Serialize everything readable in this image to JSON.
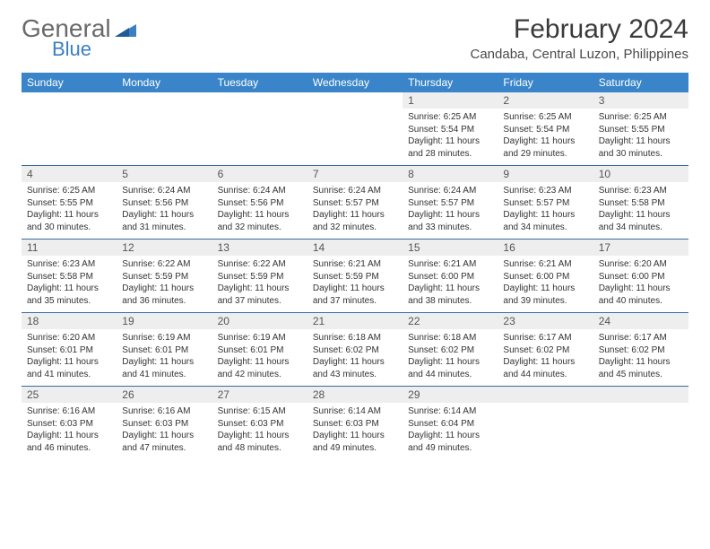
{
  "brand": {
    "general": "General",
    "blue": "Blue"
  },
  "title": "February 2024",
  "location": "Candaba, Central Luzon, Philippines",
  "weekdays": [
    "Sunday",
    "Monday",
    "Tuesday",
    "Wednesday",
    "Thursday",
    "Friday",
    "Saturday"
  ],
  "colors": {
    "header_bg": "#3a85c9",
    "header_text": "#ffffff",
    "daynum_bg": "#eeeeee",
    "week_border": "#3a6aa0",
    "brand_gray": "#6a6a6a",
    "brand_blue": "#3a7fc4"
  },
  "calendar": {
    "type": "table",
    "first_weekday_index": 4,
    "days": [
      {
        "n": 1,
        "sunrise": "6:25 AM",
        "sunset": "5:54 PM",
        "daylight": "11 hours and 28 minutes."
      },
      {
        "n": 2,
        "sunrise": "6:25 AM",
        "sunset": "5:54 PM",
        "daylight": "11 hours and 29 minutes."
      },
      {
        "n": 3,
        "sunrise": "6:25 AM",
        "sunset": "5:55 PM",
        "daylight": "11 hours and 30 minutes."
      },
      {
        "n": 4,
        "sunrise": "6:25 AM",
        "sunset": "5:55 PM",
        "daylight": "11 hours and 30 minutes."
      },
      {
        "n": 5,
        "sunrise": "6:24 AM",
        "sunset": "5:56 PM",
        "daylight": "11 hours and 31 minutes."
      },
      {
        "n": 6,
        "sunrise": "6:24 AM",
        "sunset": "5:56 PM",
        "daylight": "11 hours and 32 minutes."
      },
      {
        "n": 7,
        "sunrise": "6:24 AM",
        "sunset": "5:57 PM",
        "daylight": "11 hours and 32 minutes."
      },
      {
        "n": 8,
        "sunrise": "6:24 AM",
        "sunset": "5:57 PM",
        "daylight": "11 hours and 33 minutes."
      },
      {
        "n": 9,
        "sunrise": "6:23 AM",
        "sunset": "5:57 PM",
        "daylight": "11 hours and 34 minutes."
      },
      {
        "n": 10,
        "sunrise": "6:23 AM",
        "sunset": "5:58 PM",
        "daylight": "11 hours and 34 minutes."
      },
      {
        "n": 11,
        "sunrise": "6:23 AM",
        "sunset": "5:58 PM",
        "daylight": "11 hours and 35 minutes."
      },
      {
        "n": 12,
        "sunrise": "6:22 AM",
        "sunset": "5:59 PM",
        "daylight": "11 hours and 36 minutes."
      },
      {
        "n": 13,
        "sunrise": "6:22 AM",
        "sunset": "5:59 PM",
        "daylight": "11 hours and 37 minutes."
      },
      {
        "n": 14,
        "sunrise": "6:21 AM",
        "sunset": "5:59 PM",
        "daylight": "11 hours and 37 minutes."
      },
      {
        "n": 15,
        "sunrise": "6:21 AM",
        "sunset": "6:00 PM",
        "daylight": "11 hours and 38 minutes."
      },
      {
        "n": 16,
        "sunrise": "6:21 AM",
        "sunset": "6:00 PM",
        "daylight": "11 hours and 39 minutes."
      },
      {
        "n": 17,
        "sunrise": "6:20 AM",
        "sunset": "6:00 PM",
        "daylight": "11 hours and 40 minutes."
      },
      {
        "n": 18,
        "sunrise": "6:20 AM",
        "sunset": "6:01 PM",
        "daylight": "11 hours and 41 minutes."
      },
      {
        "n": 19,
        "sunrise": "6:19 AM",
        "sunset": "6:01 PM",
        "daylight": "11 hours and 41 minutes."
      },
      {
        "n": 20,
        "sunrise": "6:19 AM",
        "sunset": "6:01 PM",
        "daylight": "11 hours and 42 minutes."
      },
      {
        "n": 21,
        "sunrise": "6:18 AM",
        "sunset": "6:02 PM",
        "daylight": "11 hours and 43 minutes."
      },
      {
        "n": 22,
        "sunrise": "6:18 AM",
        "sunset": "6:02 PM",
        "daylight": "11 hours and 44 minutes."
      },
      {
        "n": 23,
        "sunrise": "6:17 AM",
        "sunset": "6:02 PM",
        "daylight": "11 hours and 44 minutes."
      },
      {
        "n": 24,
        "sunrise": "6:17 AM",
        "sunset": "6:02 PM",
        "daylight": "11 hours and 45 minutes."
      },
      {
        "n": 25,
        "sunrise": "6:16 AM",
        "sunset": "6:03 PM",
        "daylight": "11 hours and 46 minutes."
      },
      {
        "n": 26,
        "sunrise": "6:16 AM",
        "sunset": "6:03 PM",
        "daylight": "11 hours and 47 minutes."
      },
      {
        "n": 27,
        "sunrise": "6:15 AM",
        "sunset": "6:03 PM",
        "daylight": "11 hours and 48 minutes."
      },
      {
        "n": 28,
        "sunrise": "6:14 AM",
        "sunset": "6:03 PM",
        "daylight": "11 hours and 49 minutes."
      },
      {
        "n": 29,
        "sunrise": "6:14 AM",
        "sunset": "6:04 PM",
        "daylight": "11 hours and 49 minutes."
      }
    ]
  },
  "labels": {
    "sunrise": "Sunrise:",
    "sunset": "Sunset:",
    "daylight": "Daylight:"
  }
}
